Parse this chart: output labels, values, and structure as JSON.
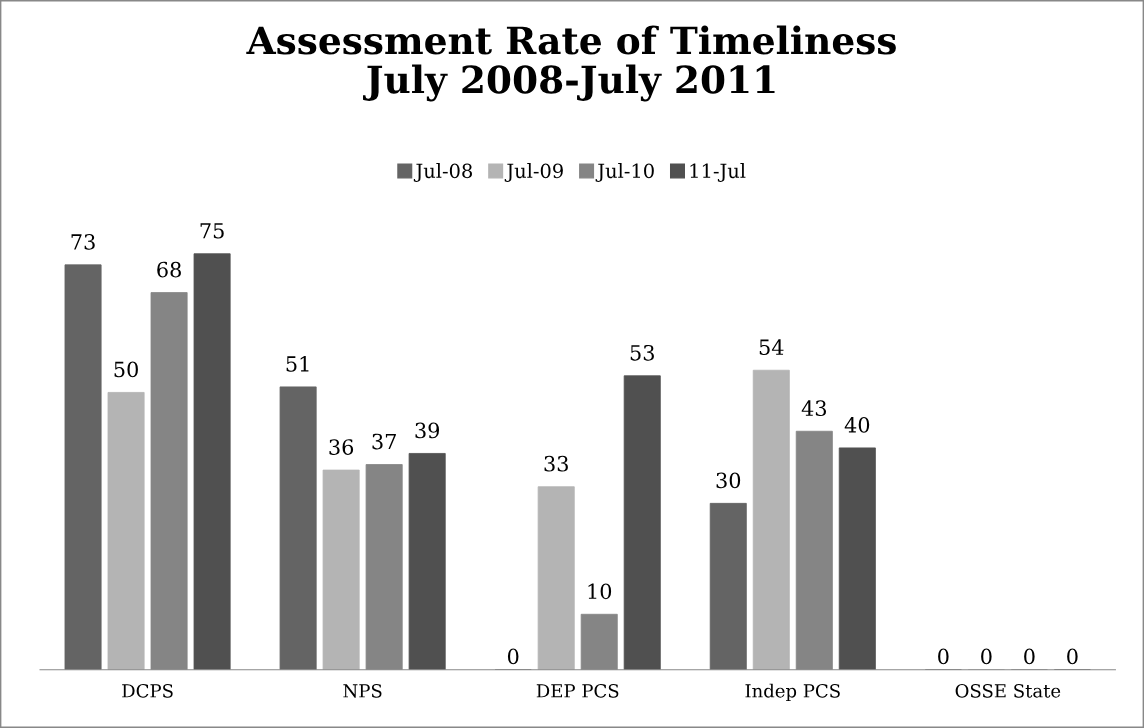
{
  "chart_data": {
    "type": "bar",
    "title": "Assessment Rate of Timeliness\nJuly 2008-July 2011",
    "categories": [
      "DCPS",
      "NPS",
      "DEP PCS",
      "Indep PCS",
      "OSSE State"
    ],
    "series": [
      {
        "name": "Jul-08",
        "color": "#646464",
        "values": [
          73,
          51,
          0,
          30,
          0
        ]
      },
      {
        "name": "Jul-09",
        "color": "#b4b4b4",
        "values": [
          50,
          36,
          33,
          54,
          0
        ]
      },
      {
        "name": "Jul-10",
        "color": "#858585",
        "values": [
          68,
          37,
          10,
          43,
          0
        ]
      },
      {
        "name": "11-Jul",
        "color": "#505050",
        "values": [
          75,
          39,
          53,
          40,
          0
        ]
      }
    ],
    "data_labels": true,
    "legend": "top",
    "grid": false
  }
}
